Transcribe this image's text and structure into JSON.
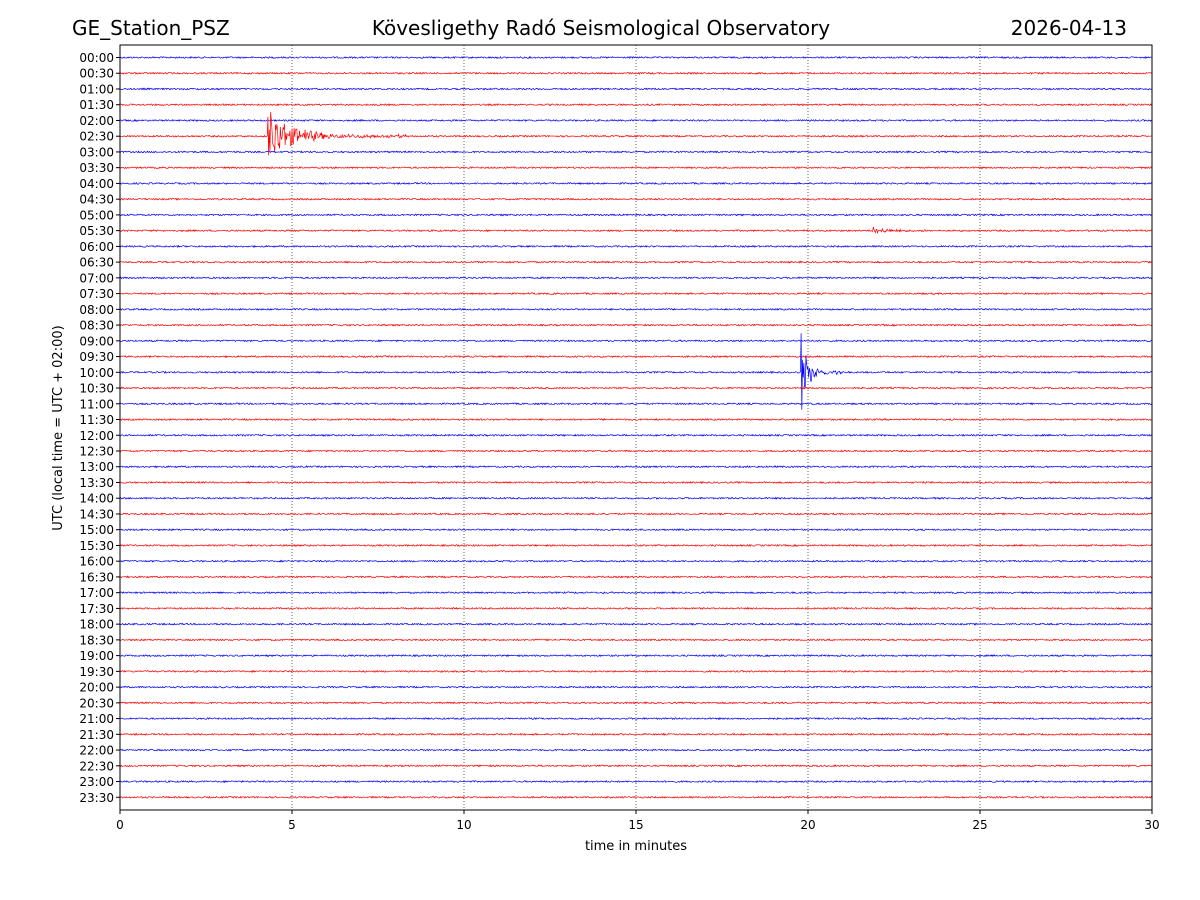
{
  "header": {
    "station": "GE_Station_PSZ",
    "observatory": "Kövesligethy Radó Seismological Observatory",
    "date": "2026-04-13"
  },
  "chart_data": {
    "type": "line",
    "chart_kind": "helicorder",
    "xlabel": "time in minutes",
    "ylabel": "UTC (local time = UTC + 02:00)",
    "xlim": [
      0,
      30
    ],
    "x_ticks": [
      "0",
      "5",
      "10",
      "15",
      "20",
      "25",
      "30"
    ],
    "x_tick_values": [
      0,
      5,
      10,
      15,
      20,
      25,
      30
    ],
    "grid": "vertical dotted at each 5 minutes",
    "row_labels": [
      "00:00",
      "00:30",
      "01:00",
      "01:30",
      "02:00",
      "02:30",
      "03:00",
      "03:30",
      "04:00",
      "04:30",
      "05:00",
      "05:30",
      "06:00",
      "06:30",
      "07:00",
      "07:30",
      "08:00",
      "08:30",
      "09:00",
      "09:30",
      "10:00",
      "10:30",
      "11:00",
      "11:30",
      "12:00",
      "12:30",
      "13:00",
      "13:30",
      "14:00",
      "14:30",
      "15:00",
      "15:30",
      "16:00",
      "16:30",
      "17:00",
      "17:30",
      "18:00",
      "18:30",
      "19:00",
      "19:30",
      "20:00",
      "20:30",
      "21:00",
      "21:30",
      "22:00",
      "22:30",
      "23:00",
      "23:30"
    ],
    "trace_colors": [
      "#0000ff",
      "#ff0000"
    ],
    "events": [
      {
        "row": "02:30",
        "start_min": 4.3,
        "end_min": 8.3,
        "peak_amplitude": 1.6,
        "color": "#ff0000"
      },
      {
        "row": "05:30",
        "start_min": 21.9,
        "end_min": 24.2,
        "peak_amplitude": 0.25,
        "color": "#ff0000"
      },
      {
        "row": "10:00",
        "start_min": 19.8,
        "end_min": 21.0,
        "peak_amplitude": 2.2,
        "color": "#0000ff"
      }
    ]
  }
}
